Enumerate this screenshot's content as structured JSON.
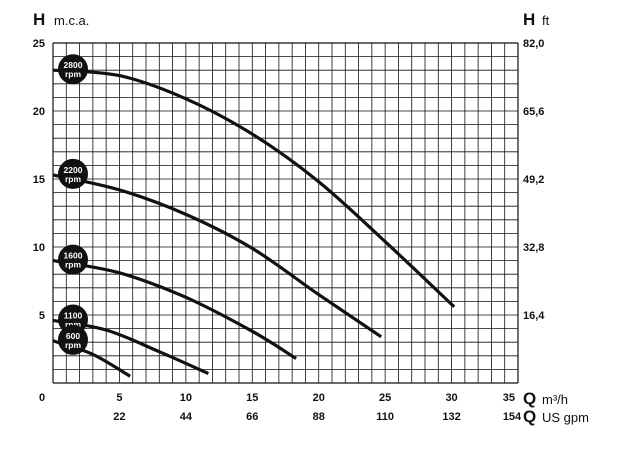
{
  "chart_data": {
    "type": "line",
    "title": "",
    "y_left": {
      "symbol": "H",
      "unit": "m.c.a.",
      "ylim": [
        0,
        25
      ],
      "ticks": [
        "25",
        "20",
        "15",
        "10",
        "5"
      ]
    },
    "y_right": {
      "symbol": "H",
      "unit": "ft",
      "ticks": [
        "82,0",
        "65,6",
        "49,2",
        "32,8",
        "16,4"
      ]
    },
    "x_bottom": {
      "symbol": "Q",
      "unit": "m³/h",
      "xlim": [
        0,
        35
      ],
      "ticks": [
        "0",
        "5",
        "10",
        "15",
        "20",
        "25",
        "30",
        "35"
      ]
    },
    "x_bottom2": {
      "symbol": "Q",
      "unit": "US gpm",
      "ticks": [
        "22",
        "44",
        "66",
        "88",
        "110",
        "132",
        "154"
      ]
    },
    "grid": true,
    "series": [
      {
        "name": "2800 rpm",
        "label_top": "2800",
        "label_bottom": "rpm",
        "x": [
          0,
          5,
          10,
          15,
          20,
          25,
          30.2
        ],
        "y": [
          23.0,
          22.6,
          20.9,
          18.3,
          14.8,
          10.4,
          5.6
        ]
      },
      {
        "name": "2200 rpm",
        "label_top": "2200",
        "label_bottom": "rpm",
        "x": [
          0,
          5,
          10,
          15,
          20,
          24.7
        ],
        "y": [
          15.3,
          14.2,
          12.4,
          9.9,
          6.5,
          3.4
        ]
      },
      {
        "name": "1600 rpm",
        "label_top": "1600",
        "label_bottom": "rpm",
        "x": [
          0,
          5,
          10,
          15,
          18.3
        ],
        "y": [
          9.0,
          8.1,
          6.3,
          3.8,
          1.8
        ]
      },
      {
        "name": "1100 rpm",
        "label_top": "1100",
        "label_bottom": "rpm",
        "x": [
          0,
          4,
          8,
          11.7
        ],
        "y": [
          4.6,
          3.9,
          2.3,
          0.7
        ]
      },
      {
        "name": "600 rpm",
        "label_top": "600",
        "label_bottom": "rpm",
        "x": [
          0,
          3,
          5.8
        ],
        "y": [
          3.1,
          2.1,
          0.5
        ]
      }
    ]
  }
}
